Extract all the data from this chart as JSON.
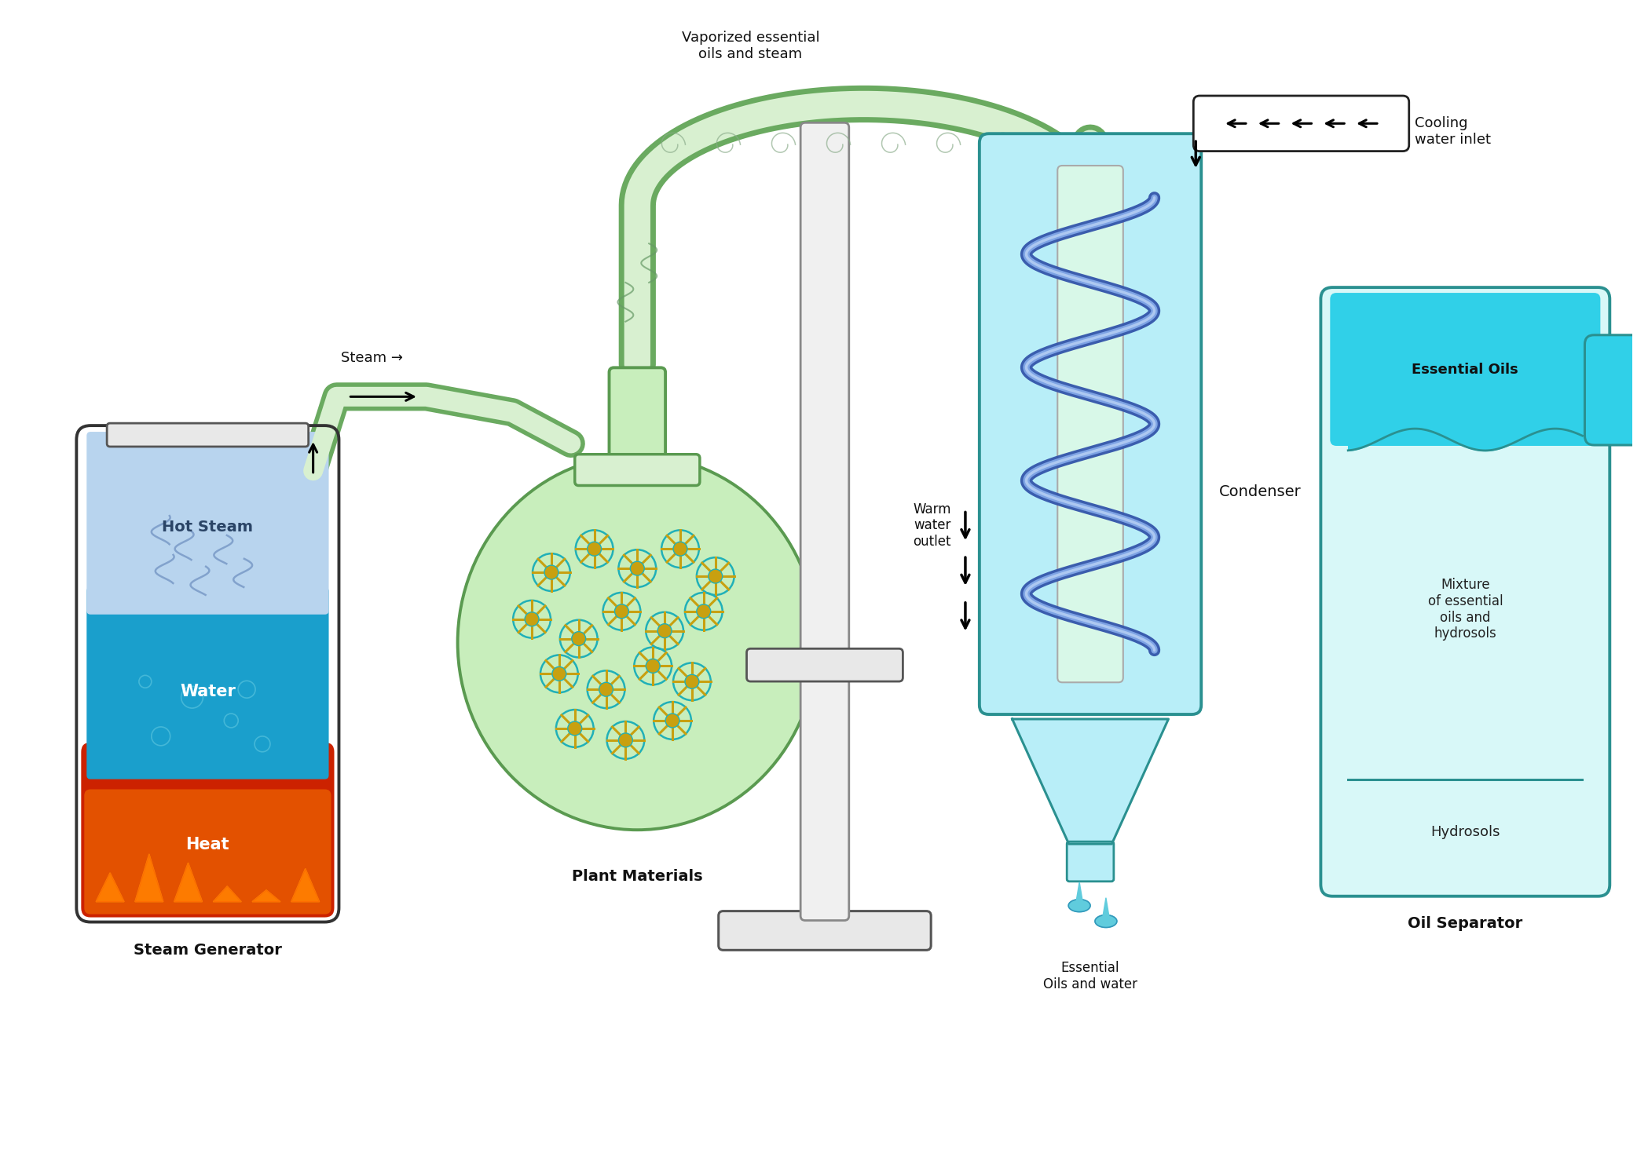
{
  "bg_color": "#ffffff",
  "labels": {
    "steam_generator": "Steam Generator",
    "hot_steam": "Hot Steam",
    "water": "Water",
    "heat": "Heat",
    "steam_label": "Steam →",
    "plant_materials": "Plant Materials",
    "vaporized": "Vaporized essential\noils and steam",
    "condenser": "Condenser",
    "cooling_water_inlet": "Cooling\nwater inlet",
    "warm_water_outlet": "Warm\nwater\noutlet",
    "essential_oils_water": "Essential\nOils and water",
    "oil_separator": "Oil Separator",
    "essential_oils": "Essential Oils",
    "mixture": "Mixture\nof essential\noils and\nhydrosols",
    "hydrosols": "Hydrosols"
  },
  "colors": {
    "bg_color": "#ffffff",
    "steam_top": "#b8d4ee",
    "water_blue": "#1a9fcc",
    "heat_red": "#cc2200",
    "heat_orange": "#ee6600",
    "flame_yellow": "#ffaa00",
    "flask_fill": "#c8eebc",
    "flask_border": "#5a9a50",
    "pipe_fill": "#d8f0d0",
    "pipe_border": "#6aaa60",
    "condenser_fill": "#b8eef8",
    "condenser_border": "#2a9090",
    "inner_tube_fill": "#d8f8e8",
    "coil_dark": "#3355aa",
    "coil_light": "#8ab0ee",
    "separator_fill": "#d8f8f8",
    "separator_border": "#2a9090",
    "essential_oil_fill": "#30d0e8",
    "funnel_fill": "#b8eef8",
    "drop_color": "#60ccdd",
    "text_dark": "#111111",
    "text_white": "#ffffff",
    "arrow_color": "#111111",
    "wisp_color": "#6688bb",
    "flower_ring": "#20b0b8",
    "flower_petal": "#c8a010",
    "pipe_gray_fill": "#f0f0f0",
    "pipe_gray_border": "#888888",
    "base_fill": "#e8e8e8",
    "base_border": "#555555"
  }
}
